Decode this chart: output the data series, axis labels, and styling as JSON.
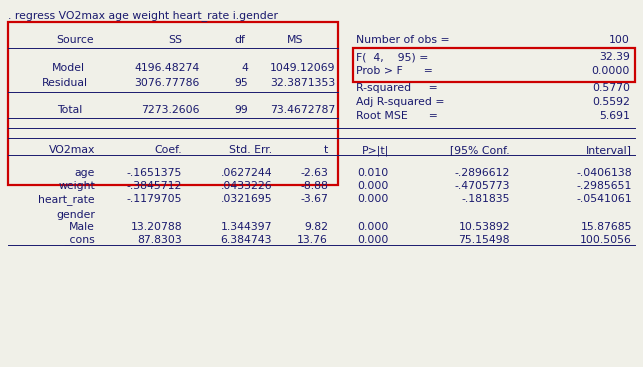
{
  "command": ". regress VO2max age weight heart_rate i.gender",
  "bg_color": "#f0f0e8",
  "text_color": "#1a1a6e",
  "font_family": "Courier New",
  "red_color": "#cc0000",
  "anova_header": [
    "Source",
    "SS",
    "df",
    "MS"
  ],
  "anova_rows": [
    [
      "Model",
      "4196.48274",
      "4",
      "1049.12069"
    ],
    [
      "Residual",
      "3076.77786",
      "95",
      "32.3871353"
    ],
    [
      "Total",
      "7273.2606",
      "99",
      "73.4672787"
    ]
  ],
  "fit_stats": [
    [
      "Number of obs",
      "=",
      "     100"
    ],
    [
      "F(  4,    95)",
      "=",
      "   32.39"
    ],
    [
      "Prob > F      ",
      "=",
      "   0.0000"
    ],
    [
      "R-squared     ",
      "=",
      "   0.5770"
    ],
    [
      "Adj R-squared ",
      "=",
      "   0.5592"
    ],
    [
      "Root MSE      ",
      "=",
      "   5.691"
    ]
  ],
  "coef_header": [
    "VO2max",
    "Coef.",
    "Std. Err.",
    "t",
    "P>|t|",
    "[95% Conf.",
    "Interval]"
  ],
  "coef_rows": [
    [
      "age",
      "-.1651375",
      ".0627244",
      "-2.63",
      "0.010",
      "-.2896612",
      "-.0406138"
    ],
    [
      "weight",
      "-.3845712",
      ".0433226",
      "-8.88",
      "0.000",
      "-.4705773",
      "-.2985651"
    ],
    [
      "heart_rate",
      "-.1179705",
      ".0321695",
      "-3.67",
      "0.000",
      "-.181835",
      "-.0541061"
    ],
    [
      "gender",
      "",
      "",
      "",
      "",
      "",
      ""
    ],
    [
      "Male",
      "13.20788",
      "1.344397",
      "9.82",
      "0.000",
      "10.53892",
      "15.87685"
    ],
    [
      "_cons",
      "87.8303",
      "6.384743",
      "13.76",
      "0.000",
      "75.15498",
      "100.5056"
    ]
  ]
}
